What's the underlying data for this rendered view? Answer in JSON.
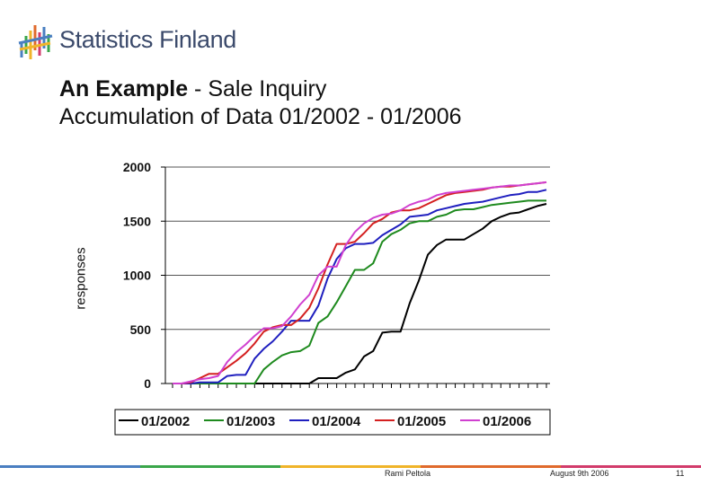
{
  "header": {
    "org_name": "Statistics Finland",
    "title_bold": "An Example",
    "title_rest": " - Sale Inquiry",
    "subtitle": "Accumulation of Data 01/2002 - 01/2006"
  },
  "colors": {
    "logo_text": "#3b4a6b",
    "footer_bar": [
      "#4a7fc1",
      "#3aa64a",
      "#f0b429",
      "#e06a2c",
      "#d23b6b"
    ]
  },
  "chart_data": {
    "type": "line",
    "ylabel": "responses",
    "ylim": [
      0,
      2000
    ],
    "yticks": [
      0,
      500,
      1000,
      1500,
      2000
    ],
    "grid": true,
    "legend_position": "bottom",
    "x_points": 42,
    "series": [
      {
        "name": "01/2002",
        "color": "#000000",
        "values": [
          0,
          0,
          0,
          0,
          0,
          0,
          0,
          0,
          0,
          0,
          0,
          0,
          0,
          0,
          0,
          0,
          50,
          50,
          50,
          100,
          130,
          250,
          300,
          470,
          480,
          480,
          740,
          950,
          1190,
          1280,
          1330,
          1330,
          1330,
          1380,
          1430,
          1500,
          1540,
          1570,
          1580,
          1610,
          1640,
          1660
        ]
      },
      {
        "name": "01/2003",
        "color": "#1e8a1e",
        "values": [
          0,
          0,
          0,
          0,
          0,
          0,
          0,
          0,
          0,
          0,
          130,
          200,
          260,
          290,
          300,
          350,
          560,
          620,
          750,
          900,
          1050,
          1050,
          1110,
          1310,
          1380,
          1420,
          1480,
          1500,
          1500,
          1540,
          1560,
          1600,
          1610,
          1610,
          1630,
          1650,
          1660,
          1670,
          1680,
          1690,
          1690,
          1690
        ]
      },
      {
        "name": "01/2004",
        "color": "#1f1fbf",
        "values": [
          0,
          0,
          0,
          10,
          10,
          10,
          70,
          80,
          80,
          230,
          320,
          390,
          480,
          580,
          580,
          580,
          720,
          970,
          1150,
          1250,
          1290,
          1290,
          1300,
          1370,
          1420,
          1470,
          1540,
          1550,
          1560,
          1600,
          1620,
          1640,
          1660,
          1670,
          1680,
          1700,
          1720,
          1740,
          1750,
          1770,
          1770,
          1790
        ]
      },
      {
        "name": "01/2005",
        "color": "#d42020",
        "values": [
          0,
          0,
          10,
          50,
          90,
          90,
          150,
          210,
          280,
          370,
          480,
          520,
          540,
          540,
          600,
          700,
          880,
          1100,
          1290,
          1290,
          1310,
          1390,
          1480,
          1520,
          1580,
          1600,
          1600,
          1620,
          1660,
          1700,
          1740,
          1760,
          1770,
          1780,
          1790,
          1810,
          1820,
          1820,
          1830,
          1840,
          1850,
          1860
        ]
      },
      {
        "name": "01/2006",
        "color": "#d040d0",
        "values": [
          0,
          0,
          20,
          40,
          50,
          70,
          200,
          290,
          360,
          440,
          510,
          510,
          530,
          620,
          730,
          820,
          1000,
          1080,
          1080,
          1280,
          1400,
          1480,
          1530,
          1560,
          1570,
          1600,
          1650,
          1680,
          1700,
          1740,
          1760,
          1770,
          1780,
          1790,
          1800,
          1810,
          1820,
          1830,
          1830,
          1840,
          1850,
          1860
        ]
      }
    ]
  },
  "footer": {
    "author": "Rami Peltola",
    "date": "August 9th 2006",
    "page": "11"
  }
}
